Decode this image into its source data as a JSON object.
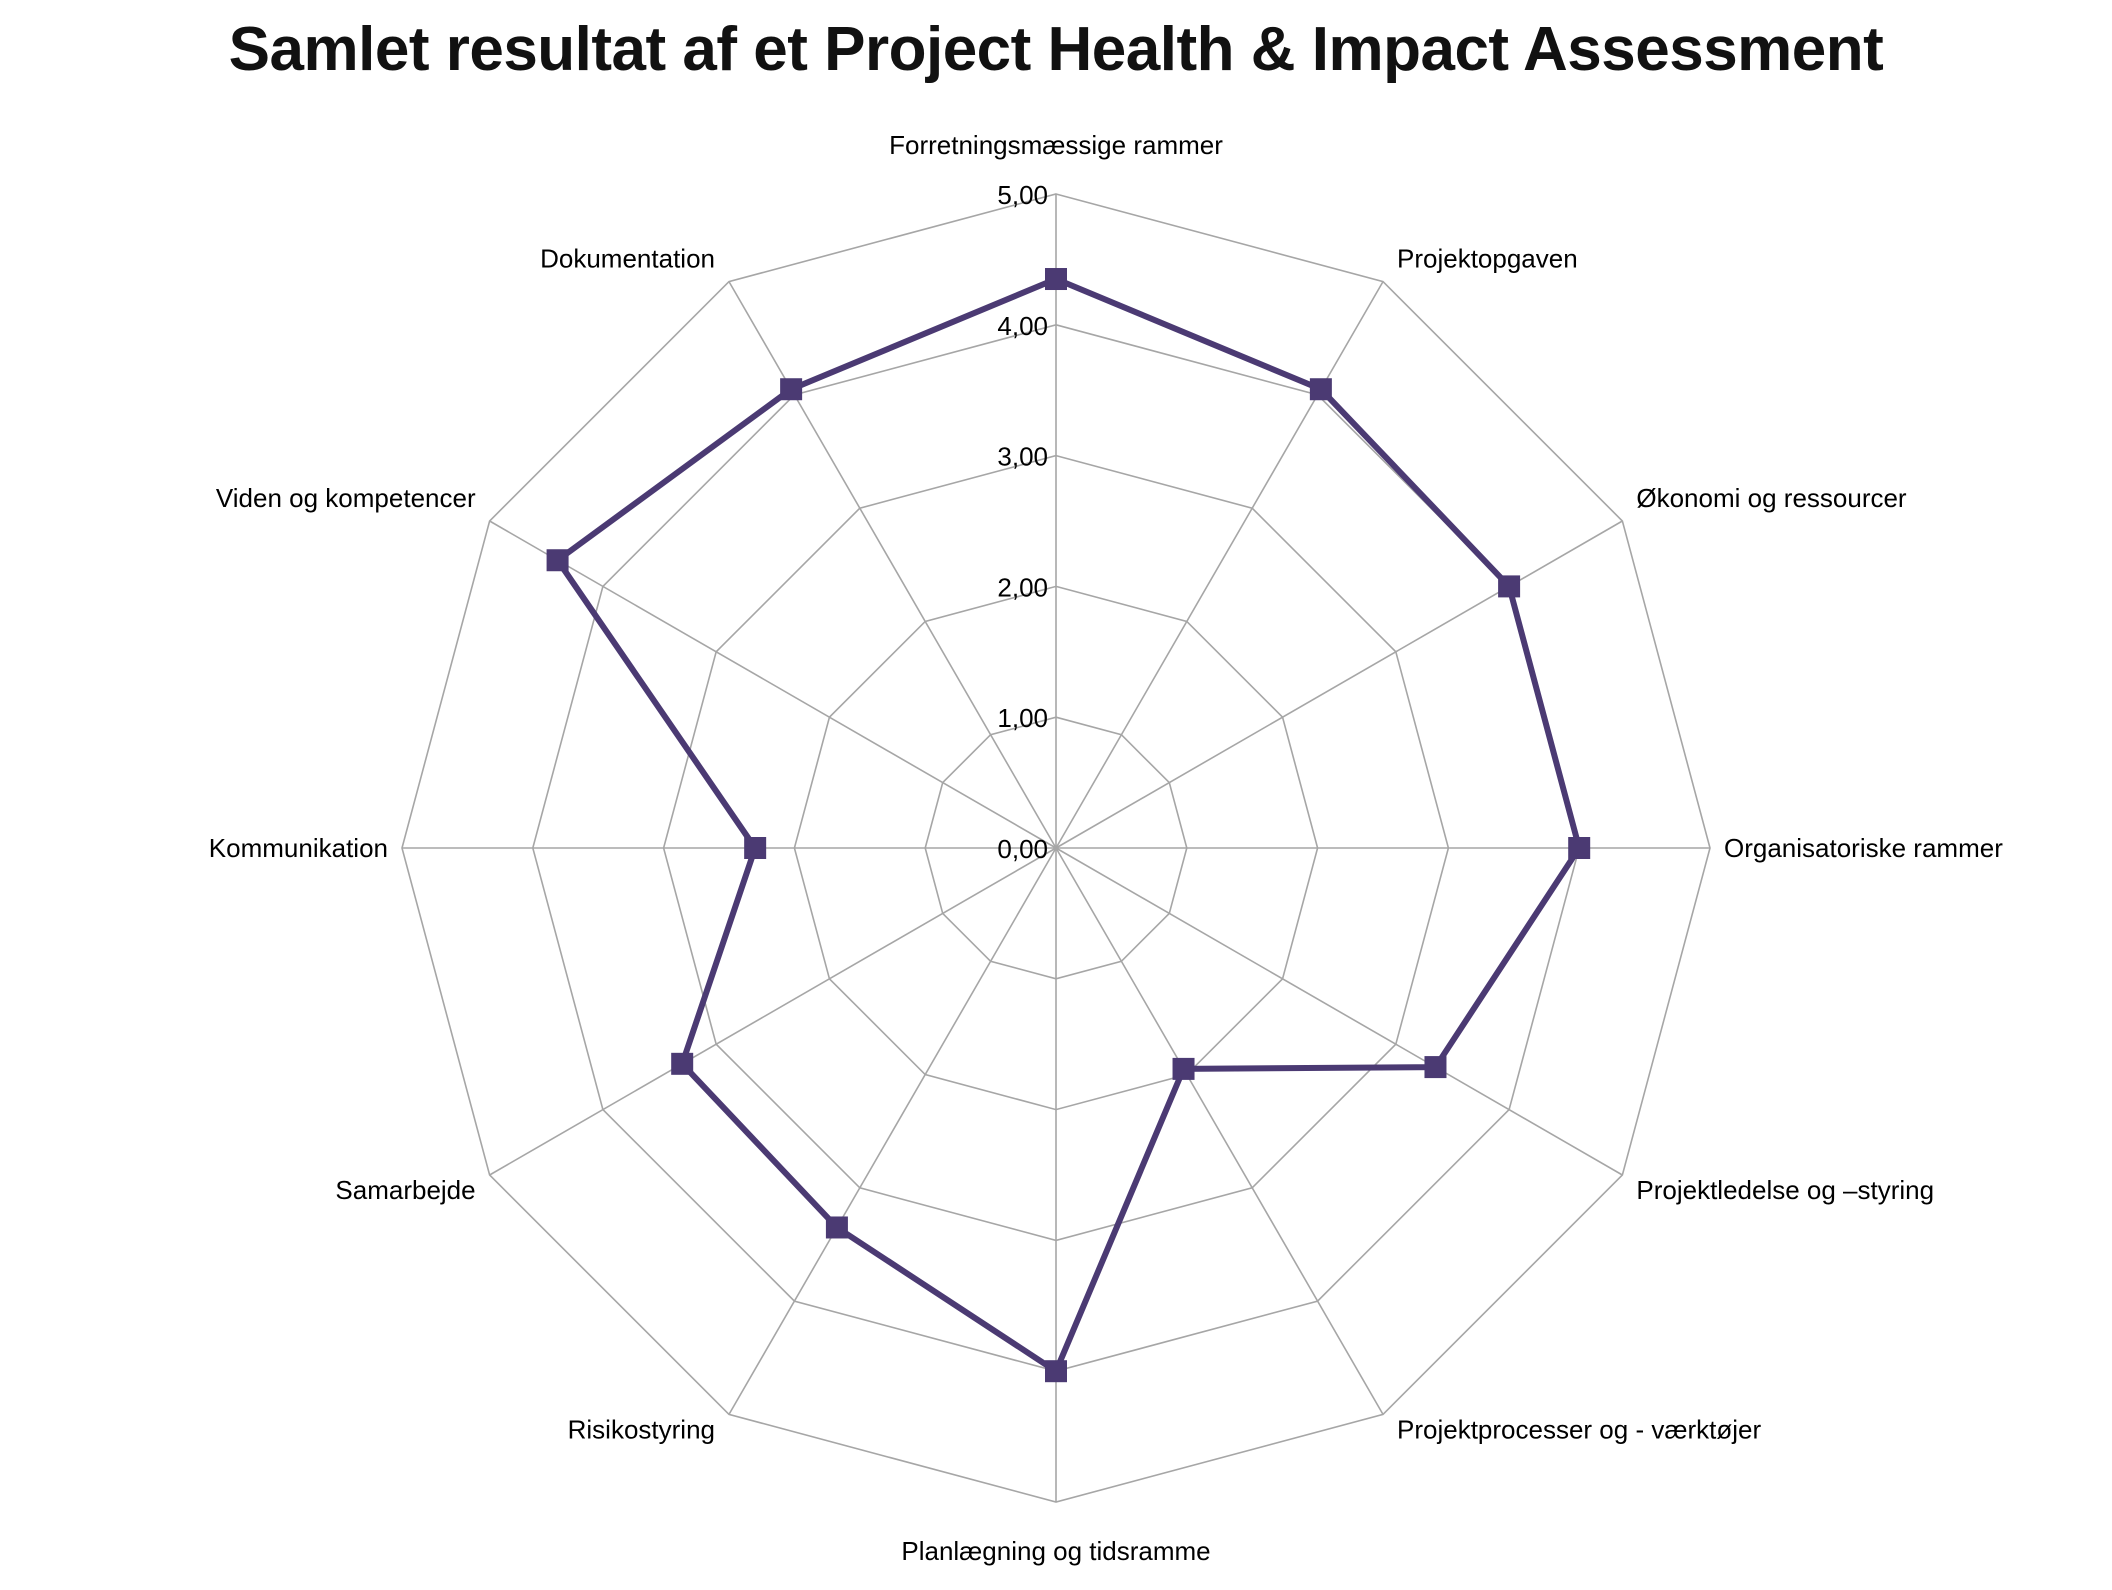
{
  "chart_data": {
    "type": "radar",
    "title": "Samlet resultat af et Project Health & Impact Assessment",
    "categories": [
      "Forretningsmæssige rammer",
      "Projektopgaven",
      "Økonomi og ressourcer",
      "Organisatoriske rammer",
      "Projektledelse og –styring",
      "Projektprocesser og - værktøjer",
      "Planlægning og tidsramme",
      "Risikostyring",
      "Samarbejde",
      "Kommunikation",
      "Viden og kompetencer",
      "Dokumentation"
    ],
    "series": [
      {
        "values": [
          4.35,
          4.05,
          4.0,
          4.0,
          3.35,
          1.95,
          4.0,
          3.35,
          3.3,
          2.3,
          4.4,
          4.05
        ]
      }
    ],
    "rlim": [
      0,
      5
    ],
    "ticks": [
      "0,00",
      "1,00",
      "2,00",
      "3,00",
      "4,00",
      "5,00"
    ],
    "grid": true,
    "legend": "none",
    "colors": {
      "series": "#4b3a73",
      "grid": "#a6a6a6"
    }
  }
}
